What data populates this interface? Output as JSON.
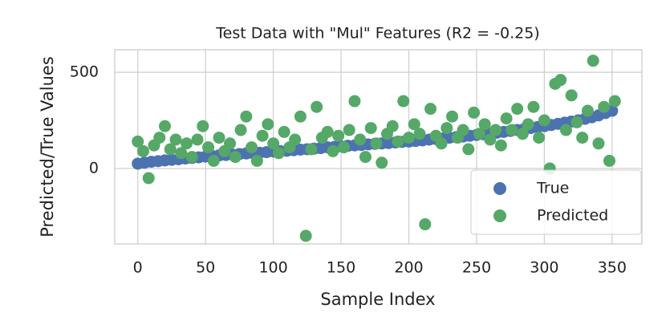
{
  "chart_data": {
    "type": "scatter",
    "title": "Test Data with \"Mul\" Features (R2 = -0.25)",
    "xlabel": "Sample Index",
    "ylabel": "Predicted/True Values",
    "xlim": [
      -17,
      372
    ],
    "ylim": [
      -392,
      617
    ],
    "xticks": [
      0,
      50,
      100,
      150,
      200,
      250,
      300,
      350
    ],
    "yticks": [
      0,
      500
    ],
    "grid": true,
    "legend": "lower right",
    "series": [
      {
        "name": "True",
        "color": "#4c72b0",
        "x": [
          0,
          5,
          10,
          15,
          20,
          25,
          30,
          35,
          40,
          45,
          50,
          55,
          60,
          65,
          70,
          75,
          80,
          85,
          90,
          95,
          100,
          105,
          110,
          115,
          120,
          125,
          130,
          135,
          140,
          145,
          150,
          155,
          160,
          165,
          170,
          175,
          180,
          185,
          190,
          195,
          200,
          205,
          210,
          215,
          220,
          225,
          230,
          235,
          240,
          245,
          250,
          255,
          260,
          265,
          270,
          275,
          280,
          285,
          290,
          295,
          300,
          305,
          310,
          315,
          320,
          325,
          330,
          335,
          340,
          345,
          350
        ],
        "values": [
          25,
          30,
          35,
          38,
          42,
          45,
          48,
          52,
          55,
          58,
          62,
          65,
          68,
          70,
          72,
          75,
          78,
          80,
          82,
          85,
          88,
          90,
          92,
          95,
          98,
          100,
          103,
          106,
          110,
          112,
          115,
          118,
          120,
          122,
          125,
          128,
          130,
          132,
          135,
          138,
          140,
          143,
          146,
          150,
          153,
          156,
          160,
          163,
          166,
          170,
          174,
          178,
          182,
          186,
          190,
          195,
          200,
          205,
          210,
          215,
          220,
          226,
          232,
          238,
          244,
          250,
          258,
          266,
          276,
          288,
          300
        ]
      },
      {
        "name": "Predicted",
        "color": "#55a868",
        "x": [
          0,
          4,
          8,
          12,
          16,
          20,
          24,
          28,
          32,
          36,
          40,
          44,
          48,
          52,
          56,
          60,
          64,
          68,
          72,
          76,
          80,
          84,
          88,
          92,
          96,
          100,
          104,
          108,
          112,
          116,
          120,
          124,
          128,
          132,
          136,
          140,
          144,
          148,
          152,
          156,
          160,
          164,
          168,
          172,
          176,
          180,
          184,
          188,
          192,
          196,
          200,
          204,
          208,
          212,
          216,
          220,
          224,
          228,
          232,
          236,
          240,
          244,
          248,
          252,
          256,
          260,
          264,
          268,
          272,
          276,
          280,
          284,
          288,
          292,
          296,
          300,
          304,
          308,
          312,
          316,
          320,
          324,
          328,
          332,
          336,
          340,
          344,
          348,
          352
        ],
        "values": [
          140,
          90,
          -50,
          120,
          160,
          220,
          100,
          150,
          80,
          130,
          60,
          150,
          220,
          110,
          40,
          160,
          90,
          130,
          60,
          200,
          270,
          110,
          40,
          170,
          230,
          130,
          80,
          190,
          110,
          150,
          270,
          -350,
          100,
          320,
          160,
          190,
          90,
          170,
          110,
          200,
          350,
          150,
          60,
          210,
          130,
          30,
          180,
          220,
          140,
          350,
          160,
          230,
          180,
          -290,
          310,
          170,
          130,
          210,
          270,
          160,
          200,
          100,
          290,
          180,
          230,
          150,
          200,
          120,
          260,
          200,
          310,
          180,
          230,
          320,
          160,
          250,
          0,
          440,
          460,
          200,
          380,
          240,
          160,
          300,
          560,
          130,
          320,
          40,
          350
        ]
      }
    ]
  }
}
